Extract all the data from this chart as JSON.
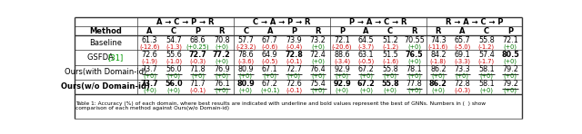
{
  "col_groups": [
    {
      "label": "A → C → P → R",
      "cols": [
        "A",
        "C",
        "P",
        "R"
      ]
    },
    {
      "label": "C → A → P → R",
      "cols": [
        "C",
        "A",
        "P",
        "R"
      ]
    },
    {
      "label": "P → A → C → R",
      "cols": [
        "P",
        "A",
        "C",
        "R"
      ]
    },
    {
      "label": "R → A → C → P",
      "cols": [
        "R",
        "A",
        "C",
        "P"
      ]
    }
  ],
  "methods": [
    "Baseline",
    "GSFDA [31]",
    "Ours(with Domain-id)",
    "Ours(w/o Domain-id)"
  ],
  "main_vals": [
    [
      "61.3",
      "54.7",
      "68.6",
      "70.8",
      "57.7",
      "67.7",
      "73.9",
      "73.2",
      "72.1",
      "64.5",
      "51.2",
      "70.55",
      "74.3",
      "65.7",
      "55.8",
      "72.1"
    ],
    [
      "72.6",
      "55.6",
      "72.7",
      "77.2",
      "78.6",
      "64.9",
      "72.8",
      "72.4",
      "88.6",
      "63.1",
      "51.5",
      "76.5",
      "84.2",
      "69.1",
      "57.4",
      "80.5"
    ],
    [
      "73.7",
      "56.0",
      "71.8",
      "76.9",
      "80.9",
      "67.1",
      "72.7",
      "76.4",
      "92.9",
      "67.2",
      "55.8",
      "78.1",
      "86.2",
      "73.3",
      "58.1",
      "79.2"
    ],
    [
      "73.7",
      "56.0",
      "71.7",
      "76.1",
      "80.9",
      "67.2",
      "72.6",
      "75.4",
      "92.9",
      "67.2",
      "55.8",
      "77.8",
      "86.2",
      "72.8",
      "58.1",
      "79.2"
    ]
  ],
  "delta_vals": [
    [
      "(-12.6)",
      "(-1.3)",
      "(+0.25)",
      "(+0)",
      "(-23.2)",
      "(-0.6)",
      "(-0.4)",
      "(+0)",
      "(-20.6)",
      "(-3.7)",
      "(-1.2)",
      "(+0)",
      "(-11.6)",
      "(-5.0)",
      "(-1.2)",
      "(+0)"
    ],
    [
      "(-1.9)",
      "(-1.0)",
      "(-0.3)",
      "(+0)",
      "(-3.6)",
      "(-0.5)",
      "(-0.1)",
      "(+0)",
      "(-3.4)",
      "(-0.5)",
      "(-1.6)",
      "(+0)",
      "(-1.8)",
      "(-3.3)",
      "(-1.7)",
      "(+0)"
    ],
    [
      "(+0)",
      "(+0)",
      "(+0)",
      "(+0)",
      "(+0)",
      "(+0)",
      "(+0)",
      "(+0)",
      "(+0)",
      "(+0)",
      "(+0)",
      "(+0)",
      "(+0)",
      "(+0)",
      "(+0)",
      "(+0)"
    ],
    [
      "(+0)",
      "(+0)",
      "(-0.1)",
      "(+0)",
      "(+0)",
      "(+0.1)",
      "(-0.1)",
      "(+0)",
      "(+0)",
      "(+0)",
      "(+0)",
      "(+0)",
      "(+0)",
      "(-0.3)",
      "(+0)",
      "(+0)"
    ]
  ],
  "bold_data": [
    [],
    [
      2,
      3,
      6,
      11,
      15
    ],
    [],
    [
      0,
      1,
      4,
      8,
      9,
      10,
      12
    ]
  ],
  "underline_data": [
    [],
    [],
    [
      0,
      1,
      2,
      3,
      4,
      5,
      6,
      7,
      8,
      9,
      10,
      11,
      12,
      13,
      14,
      15
    ],
    [
      3,
      7,
      11,
      15
    ]
  ],
  "bold_method": [
    false,
    false,
    false,
    true
  ],
  "delta_neg": [
    [
      true,
      true,
      false,
      false,
      true,
      true,
      true,
      false,
      true,
      true,
      true,
      false,
      true,
      true,
      true,
      false
    ],
    [
      true,
      true,
      true,
      false,
      true,
      true,
      true,
      false,
      true,
      true,
      true,
      false,
      true,
      true,
      true,
      false
    ],
    [
      false,
      false,
      false,
      false,
      false,
      false,
      false,
      false,
      false,
      false,
      false,
      false,
      false,
      false,
      false,
      false
    ],
    [
      false,
      false,
      true,
      false,
      false,
      false,
      true,
      false,
      false,
      false,
      false,
      false,
      false,
      true,
      false,
      false
    ]
  ],
  "bg_color": "#ffffff",
  "neg_color": "#cc0000",
  "pos_color": "#007700",
  "cite_color": "#009900",
  "line_color": "#333333",
  "caption_line1": "Table 1: Accuracy (%) of each domain, where best results are indicated with underline and bold values represent the best of GNNs. Numbers in (  ) show",
  "caption_line2": "comparison of each method against Ours(w/o Domain-id)"
}
